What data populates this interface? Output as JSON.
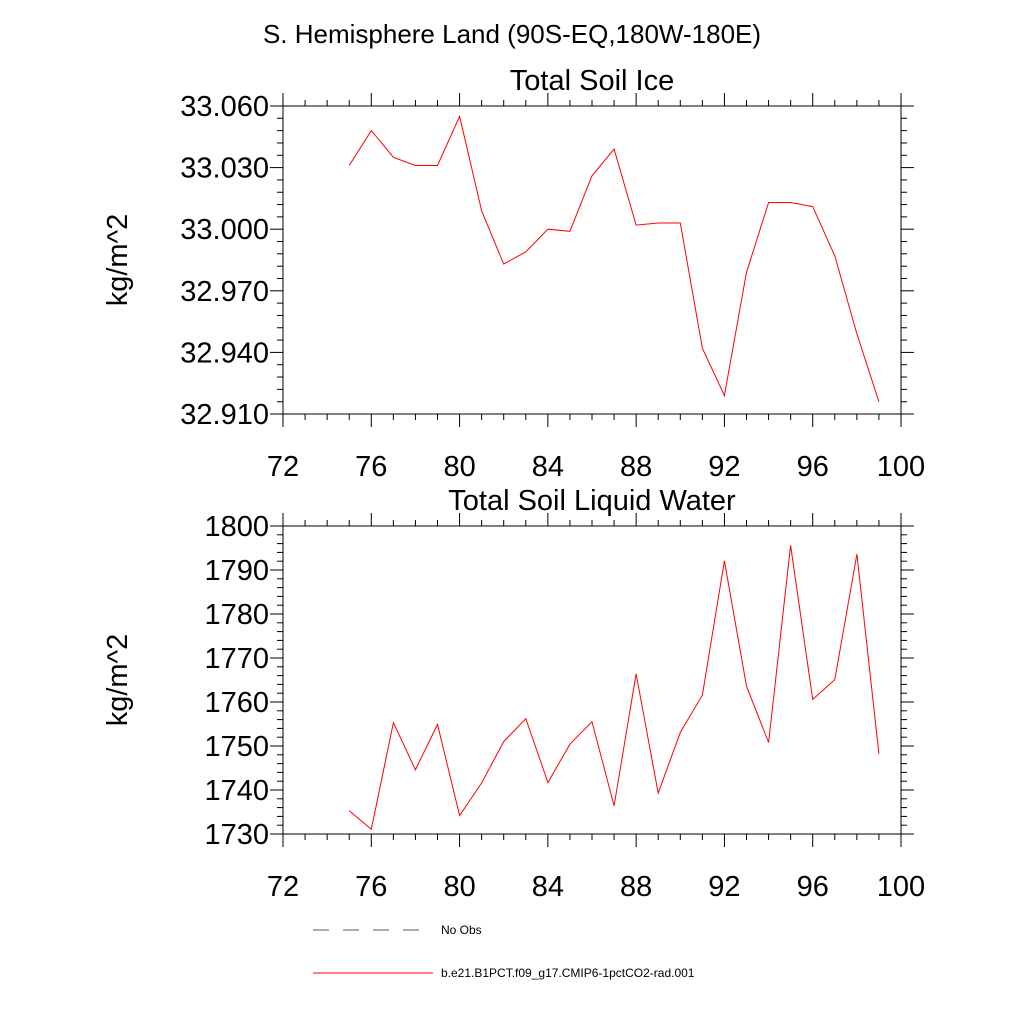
{
  "main_title": "S. Hemisphere Land (90S-EQ,180W-180E)",
  "legend": {
    "entries": [
      {
        "label": "No Obs",
        "style": "dashed",
        "color": "#5a5a7a"
      },
      {
        "label": "b.e21.B1PCT.f09_g17.CMIP6-1pctCO2-rad.001",
        "style": "solid",
        "color": "#ff0000"
      }
    ]
  },
  "chart_data": [
    {
      "type": "line",
      "title": "Total Soil Ice",
      "xlabel": "",
      "ylabel": "kg/m^2",
      "xlim": [
        72,
        100
      ],
      "ylim": [
        32.91,
        33.06
      ],
      "xticks": [
        72,
        76,
        80,
        84,
        88,
        92,
        96,
        100
      ],
      "xtick_labels": [
        "72",
        "76",
        "80",
        "84",
        "88",
        "92",
        "96",
        "100"
      ],
      "yticks": [
        32.91,
        32.94,
        32.97,
        33.0,
        33.03,
        33.06
      ],
      "ytick_labels": [
        "32.910",
        "32.940",
        "32.970",
        "33.000",
        "33.030",
        "33.060"
      ],
      "grid": false,
      "series": [
        {
          "color": "#ff0000",
          "x": [
            75,
            76,
            77,
            78,
            79,
            80,
            81,
            82,
            83,
            84,
            85,
            86,
            87,
            88,
            89,
            90,
            91,
            92,
            93,
            94,
            95,
            96,
            97,
            98,
            99
          ],
          "y": [
            33.031,
            33.048,
            33.035,
            33.031,
            33.031,
            33.055,
            33.009,
            32.983,
            32.989,
            33.0,
            32.999,
            33.026,
            33.039,
            33.002,
            33.003,
            33.003,
            32.942,
            32.919,
            32.979,
            33.013,
            33.013,
            33.011,
            32.987,
            32.949,
            32.916
          ]
        }
      ]
    },
    {
      "type": "line",
      "title": "Total Soil Liquid Water",
      "xlabel": "",
      "ylabel": "kg/m^2",
      "xlim": [
        72,
        100
      ],
      "ylim": [
        1730,
        1800
      ],
      "xticks": [
        72,
        76,
        80,
        84,
        88,
        92,
        96,
        100
      ],
      "xtick_labels": [
        "72",
        "76",
        "80",
        "84",
        "88",
        "92",
        "96",
        "100"
      ],
      "yticks": [
        1730,
        1740,
        1750,
        1760,
        1770,
        1780,
        1790,
        1800
      ],
      "ytick_labels": [
        "1730",
        "1740",
        "1750",
        "1760",
        "1770",
        "1780",
        "1790",
        "1800"
      ],
      "grid": false,
      "series": [
        {
          "color": "#ff0000",
          "x": [
            75,
            76,
            77,
            78,
            79,
            80,
            81,
            82,
            83,
            84,
            85,
            86,
            87,
            88,
            89,
            90,
            91,
            92,
            93,
            94,
            95,
            96,
            97,
            98,
            99
          ],
          "y": [
            1735.3,
            1731.1,
            1755.3,
            1744.6,
            1754.9,
            1734.2,
            1741.6,
            1751.0,
            1756.2,
            1741.7,
            1750.4,
            1755.5,
            1736.4,
            1766.4,
            1739.3,
            1753.1,
            1761.6,
            1792.1,
            1763.6,
            1750.8,
            1795.6,
            1760.6,
            1765.1,
            1793.6,
            1748.2
          ]
        }
      ]
    }
  ]
}
